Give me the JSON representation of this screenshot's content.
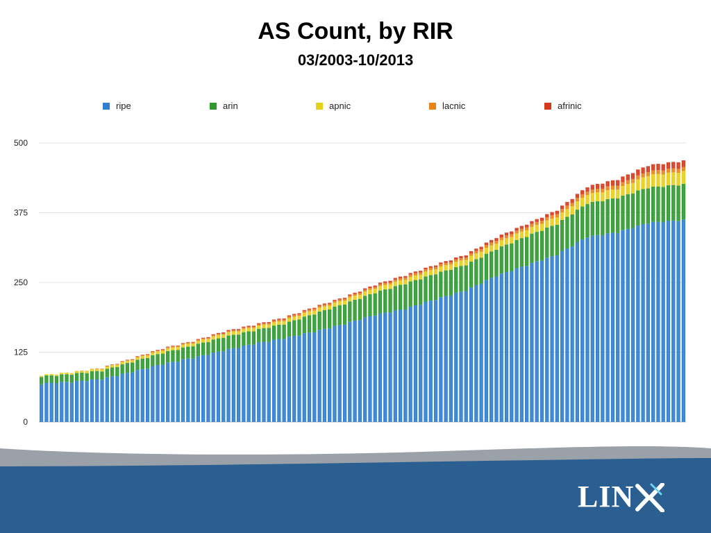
{
  "slide": {
    "title": "AS Count, by RIR",
    "subtitle": "03/2003-10/2013",
    "logo_text": "LIN"
  },
  "colors": {
    "ripe": "#2f7fd0",
    "arin": "#2e9a2e",
    "apnic": "#e8cf1a",
    "lacnic": "#e8841a",
    "afrinic": "#d63a1e",
    "footer_band": "#2c5f91",
    "footer_swoosh": "#9aa1a8"
  },
  "chart_data": {
    "type": "bar",
    "stacked": true,
    "ylim": [
      0,
      500
    ],
    "yticks": [
      0,
      125,
      250,
      375,
      500
    ],
    "grid": true,
    "legend_position": "top",
    "series_order": [
      "ripe",
      "arin",
      "apnic",
      "lacnic",
      "afrinic"
    ],
    "legend": [
      {
        "key": "ripe",
        "label": "ripe"
      },
      {
        "key": "arin",
        "label": "arin"
      },
      {
        "key": "apnic",
        "label": "apnic"
      },
      {
        "key": "lacnic",
        "label": "lacnic"
      },
      {
        "key": "afrinic",
        "label": "afrinic"
      }
    ],
    "keyframes": [
      {
        "i": 0,
        "ripe": 69,
        "arin": 13,
        "apnic": 2,
        "lacnic": 0,
        "afrinic": 0
      },
      {
        "i": 6,
        "ripe": 72,
        "arin": 14,
        "apnic": 3,
        "lacnic": 0,
        "afrinic": 0
      },
      {
        "i": 12,
        "ripe": 77,
        "arin": 15,
        "apnic": 4,
        "lacnic": 1,
        "afrinic": 0
      },
      {
        "i": 18,
        "ripe": 90,
        "arin": 18,
        "apnic": 4,
        "lacnic": 1,
        "afrinic": 1
      },
      {
        "i": 24,
        "ripe": 104,
        "arin": 20,
        "apnic": 5,
        "lacnic": 2,
        "afrinic": 1
      },
      {
        "i": 30,
        "ripe": 115,
        "arin": 22,
        "apnic": 5,
        "lacnic": 2,
        "afrinic": 1
      },
      {
        "i": 36,
        "ripe": 128,
        "arin": 24,
        "apnic": 6,
        "lacnic": 2,
        "afrinic": 2
      },
      {
        "i": 42,
        "ripe": 140,
        "arin": 24,
        "apnic": 6,
        "lacnic": 2,
        "afrinic": 2
      },
      {
        "i": 48,
        "ripe": 150,
        "arin": 26,
        "apnic": 6,
        "lacnic": 3,
        "afrinic": 2
      },
      {
        "i": 54,
        "ripe": 162,
        "arin": 32,
        "apnic": 7,
        "lacnic": 3,
        "afrinic": 2
      },
      {
        "i": 60,
        "ripe": 176,
        "arin": 36,
        "apnic": 7,
        "lacnic": 3,
        "afrinic": 2
      },
      {
        "i": 66,
        "ripe": 192,
        "arin": 40,
        "apnic": 8,
        "lacnic": 3,
        "afrinic": 3
      },
      {
        "i": 72,
        "ripe": 203,
        "arin": 45,
        "apnic": 8,
        "lacnic": 4,
        "afrinic": 3
      },
      {
        "i": 78,
        "ripe": 220,
        "arin": 46,
        "apnic": 9,
        "lacnic": 4,
        "afrinic": 3
      },
      {
        "i": 84,
        "ripe": 236,
        "arin": 46,
        "apnic": 10,
        "lacnic": 4,
        "afrinic": 4
      },
      {
        "i": 90,
        "ripe": 262,
        "arin": 48,
        "apnic": 11,
        "lacnic": 5,
        "afrinic": 5
      },
      {
        "i": 96,
        "ripe": 281,
        "arin": 52,
        "apnic": 12,
        "lacnic": 5,
        "afrinic": 5
      },
      {
        "i": 102,
        "ripe": 300,
        "arin": 55,
        "apnic": 13,
        "lacnic": 6,
        "afrinic": 6
      },
      {
        "i": 108,
        "ripe": 332,
        "arin": 60,
        "apnic": 16,
        "lacnic": 6,
        "afrinic": 8
      },
      {
        "i": 114,
        "ripe": 340,
        "arin": 62,
        "apnic": 16,
        "lacnic": 7,
        "afrinic": 10
      },
      {
        "i": 120,
        "ripe": 357,
        "arin": 63,
        "apnic": 22,
        "lacnic": 7,
        "afrinic": 11
      },
      {
        "i": 127,
        "ripe": 362,
        "arin": 64,
        "apnic": 23,
        "lacnic": 7,
        "afrinic": 12
      }
    ],
    "bar_count": 128
  }
}
